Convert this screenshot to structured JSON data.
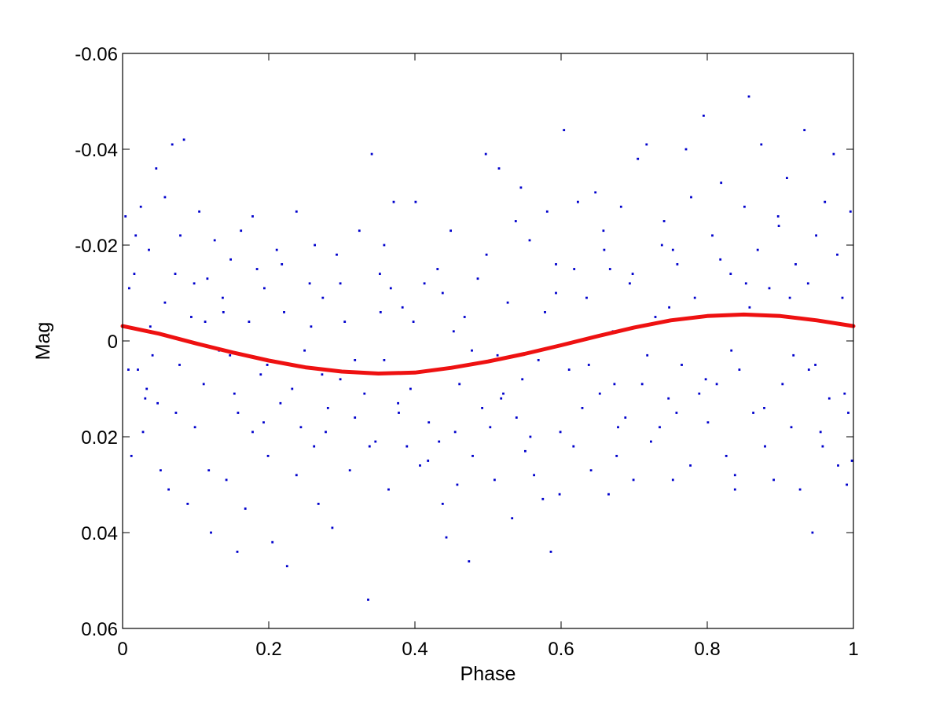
{
  "chart_data": {
    "type": "scatter",
    "title": "",
    "xlabel": "Phase",
    "ylabel": "Mag",
    "xlim": [
      0,
      1
    ],
    "ylim": [
      -0.06,
      0.06
    ],
    "y_axis_reversed": true,
    "grid": false,
    "legend": "none",
    "x_ticks": [
      0,
      0.2,
      0.4,
      0.6,
      0.8,
      1
    ],
    "x_tick_labels": [
      "0",
      "0.2",
      "0.4",
      "0.6",
      "0.8",
      "1"
    ],
    "y_ticks": [
      -0.06,
      -0.04,
      -0.02,
      0,
      0.02,
      0.04,
      0.06
    ],
    "y_tick_labels": [
      "-0.06",
      "-0.04",
      "-0.02",
      "0",
      "0.02",
      "0.04",
      "0.06"
    ],
    "colors": {
      "points": "#0000cc",
      "fit": "#ee1111",
      "axes": "#000000"
    },
    "series": [
      {
        "kind": "points",
        "points": [
          [
            0.004,
            -0.026
          ],
          [
            0.009,
            -0.011
          ],
          [
            0.012,
            0.024
          ],
          [
            0.016,
            -0.014
          ],
          [
            0.021,
            0.006
          ],
          [
            0.025,
            -0.028
          ],
          [
            0.031,
            0.012
          ],
          [
            0.036,
            -0.019
          ],
          [
            0.041,
            0.003
          ],
          [
            0.046,
            -0.036
          ],
          [
            0.052,
            0.027
          ],
          [
            0.058,
            -0.008
          ],
          [
            0.063,
            0.031
          ],
          [
            0.068,
            -0.041
          ],
          [
            0.073,
            0.015
          ],
          [
            0.079,
            -0.022
          ],
          [
            0.084,
            -0.042
          ],
          [
            0.089,
            0.034
          ],
          [
            0.094,
            -0.005
          ],
          [
            0.099,
            0.018
          ],
          [
            0.105,
            -0.027
          ],
          [
            0.111,
            0.009
          ],
          [
            0.116,
            -0.013
          ],
          [
            0.121,
            0.04
          ],
          [
            0.126,
            -0.021
          ],
          [
            0.132,
            0.002
          ],
          [
            0.137,
            -0.009
          ],
          [
            0.142,
            0.029
          ],
          [
            0.148,
            -0.017
          ],
          [
            0.153,
            0.011
          ],
          [
            0.157,
            0.044
          ],
          [
            0.162,
            -0.023
          ],
          [
            0.168,
            0.035
          ],
          [
            0.173,
            -0.004
          ],
          [
            0.178,
            0.019
          ],
          [
            0.184,
            -0.015
          ],
          [
            0.189,
            0.007
          ],
          [
            0.194,
            -0.011
          ],
          [
            0.199,
            0.024
          ],
          [
            0.205,
            0.042
          ],
          [
            0.211,
            -0.019
          ],
          [
            0.216,
            0.013
          ],
          [
            0.221,
            -0.006
          ],
          [
            0.225,
            0.047
          ],
          [
            0.232,
            0.01
          ],
          [
            0.238,
            -0.027
          ],
          [
            0.244,
            0.018
          ],
          [
            0.249,
            0.002
          ],
          [
            0.256,
            -0.012
          ],
          [
            0.262,
            0.022
          ],
          [
            0.268,
            0.034
          ],
          [
            0.274,
            -0.009
          ],
          [
            0.281,
            0.014
          ],
          [
            0.287,
            0.039
          ],
          [
            0.293,
            -0.018
          ],
          [
            0.298,
            0.008
          ],
          [
            0.304,
            -0.004
          ],
          [
            0.311,
            0.027
          ],
          [
            0.318,
            0.016
          ],
          [
            0.324,
            -0.023
          ],
          [
            0.331,
            0.011
          ],
          [
            0.336,
            0.054
          ],
          [
            0.341,
            -0.039
          ],
          [
            0.346,
            0.021
          ],
          [
            0.352,
            -0.014
          ],
          [
            0.358,
            0.004
          ],
          [
            0.364,
            0.031
          ],
          [
            0.371,
            -0.029
          ],
          [
            0.377,
            0.013
          ],
          [
            0.383,
            -0.007
          ],
          [
            0.389,
            0.022
          ],
          [
            0.394,
            0.01
          ],
          [
            0.401,
            -0.029
          ],
          [
            0.407,
            0.026
          ],
          [
            0.413,
            -0.012
          ],
          [
            0.419,
            0.017
          ],
          [
            0.425,
            0.006
          ],
          [
            0.431,
            -0.015
          ],
          [
            0.438,
            0.034
          ],
          [
            0.443,
            0.041
          ],
          [
            0.449,
            -0.023
          ],
          [
            0.455,
            0.019
          ],
          [
            0.461,
            0.009
          ],
          [
            0.468,
            -0.005
          ],
          [
            0.474,
            0.046
          ],
          [
            0.479,
            0.024
          ],
          [
            0.486,
            -0.013
          ],
          [
            0.492,
            0.014
          ],
          [
            0.497,
            -0.039
          ],
          [
            0.503,
            0.018
          ],
          [
            0.509,
            0.029
          ],
          [
            0.515,
            -0.036
          ],
          [
            0.521,
            0.011
          ],
          [
            0.527,
            -0.008
          ],
          [
            0.533,
            0.037
          ],
          [
            0.539,
            0.016
          ],
          [
            0.545,
            -0.032
          ],
          [
            0.551,
            0.023
          ],
          [
            0.557,
            -0.021
          ],
          [
            0.563,
            0.028
          ],
          [
            0.569,
            0.004
          ],
          [
            0.575,
            0.033
          ],
          [
            0.581,
            -0.027
          ],
          [
            0.586,
            0.044
          ],
          [
            0.593,
            -0.016
          ],
          [
            0.599,
            0.019
          ],
          [
            0.604,
            -0.044
          ],
          [
            0.611,
            0.006
          ],
          [
            0.617,
            0.022
          ],
          [
            0.623,
            -0.029
          ],
          [
            0.629,
            0.014
          ],
          [
            0.635,
            -0.009
          ],
          [
            0.641,
            0.027
          ],
          [
            0.647,
            -0.031
          ],
          [
            0.653,
            0.011
          ],
          [
            0.659,
            -0.019
          ],
          [
            0.665,
            0.032
          ],
          [
            0.671,
            -0.002
          ],
          [
            0.676,
            0.024
          ],
          [
            0.682,
            -0.028
          ],
          [
            0.688,
            0.016
          ],
          [
            0.694,
            -0.012
          ],
          [
            0.699,
            0.029
          ],
          [
            0.705,
            -0.038
          ],
          [
            0.711,
            0.009
          ],
          [
            0.717,
            -0.041
          ],
          [
            0.723,
            0.021
          ],
          [
            0.729,
            -0.005
          ],
          [
            0.735,
            0.018
          ],
          [
            0.741,
            -0.025
          ],
          [
            0.747,
            0.012
          ],
          [
            0.753,
            0.029
          ],
          [
            0.759,
            -0.016
          ],
          [
            0.765,
            0.005
          ],
          [
            0.771,
            -0.04
          ],
          [
            0.777,
            0.026
          ],
          [
            0.783,
            -0.009
          ],
          [
            0.789,
            0.011
          ],
          [
            0.795,
            -0.047
          ],
          [
            0.801,
            0.017
          ],
          [
            0.807,
            -0.022
          ],
          [
            0.813,
            0.009
          ],
          [
            0.819,
            -0.033
          ],
          [
            0.826,
            0.024
          ],
          [
            0.832,
            -0.014
          ],
          [
            0.838,
            0.031
          ],
          [
            0.844,
            0.006
          ],
          [
            0.851,
            -0.028
          ],
          [
            0.857,
            -0.051
          ],
          [
            0.863,
            0.015
          ],
          [
            0.869,
            -0.019
          ],
          [
            0.874,
            -0.041
          ],
          [
            0.879,
            0.022
          ],
          [
            0.885,
            -0.011
          ],
          [
            0.891,
            0.029
          ],
          [
            0.897,
            -0.026
          ],
          [
            0.903,
            0.009
          ],
          [
            0.909,
            -0.034
          ],
          [
            0.915,
            0.018
          ],
          [
            0.921,
            -0.016
          ],
          [
            0.927,
            0.031
          ],
          [
            0.933,
            -0.044
          ],
          [
            0.939,
            0.006
          ],
          [
            0.944,
            0.04
          ],
          [
            0.949,
            -0.022
          ],
          [
            0.955,
            0.019
          ],
          [
            0.961,
            -0.029
          ],
          [
            0.967,
            0.012
          ],
          [
            0.973,
            -0.039
          ],
          [
            0.979,
            0.026
          ],
          [
            0.985,
            -0.009
          ],
          [
            0.991,
            0.03
          ],
          [
            0.996,
            -0.027
          ],
          [
            0.998,
            0.025
          ],
          [
            0.008,
            0.006
          ],
          [
            0.018,
            -0.022
          ],
          [
            0.028,
            0.019
          ],
          [
            0.038,
            -0.003
          ],
          [
            0.048,
            0.013
          ],
          [
            0.058,
            -0.03
          ],
          [
            0.078,
            0.005
          ],
          [
            0.098,
            -0.012
          ],
          [
            0.118,
            0.027
          ],
          [
            0.138,
            -0.006
          ],
          [
            0.158,
            0.015
          ],
          [
            0.178,
            -0.026
          ],
          [
            0.198,
            0.005
          ],
          [
            0.218,
            -0.016
          ],
          [
            0.238,
            0.028
          ],
          [
            0.258,
            -0.003
          ],
          [
            0.278,
            0.019
          ],
          [
            0.298,
            -0.012
          ],
          [
            0.318,
            0.004
          ],
          [
            0.338,
            0.022
          ],
          [
            0.358,
            -0.02
          ],
          [
            0.378,
            0.015
          ],
          [
            0.398,
            -0.004
          ],
          [
            0.418,
            0.025
          ],
          [
            0.438,
            -0.01
          ],
          [
            0.458,
            0.03
          ],
          [
            0.478,
            0.002
          ],
          [
            0.498,
            -0.018
          ],
          [
            0.518,
            0.012
          ],
          [
            0.538,
            -0.025
          ],
          [
            0.558,
            0.02
          ],
          [
            0.578,
            -0.006
          ],
          [
            0.598,
            0.032
          ],
          [
            0.618,
            -0.015
          ],
          [
            0.638,
            0.005
          ],
          [
            0.658,
            -0.023
          ],
          [
            0.678,
            0.018
          ],
          [
            0.698,
            -0.014
          ],
          [
            0.718,
            0.003
          ],
          [
            0.738,
            -0.02
          ],
          [
            0.758,
            0.015
          ],
          [
            0.778,
            -0.03
          ],
          [
            0.798,
            0.008
          ],
          [
            0.818,
            -0.017
          ],
          [
            0.838,
            0.028
          ],
          [
            0.858,
            -0.007
          ],
          [
            0.878,
            0.014
          ],
          [
            0.898,
            -0.024
          ],
          [
            0.918,
            0.003
          ],
          [
            0.938,
            -0.012
          ],
          [
            0.958,
            0.022
          ],
          [
            0.978,
            -0.018
          ],
          [
            0.988,
            0.011
          ],
          [
            0.072,
            -0.014
          ],
          [
            0.147,
            0.003
          ],
          [
            0.263,
            -0.02
          ],
          [
            0.367,
            -0.011
          ],
          [
            0.453,
            -0.002
          ],
          [
            0.547,
            0.008
          ],
          [
            0.667,
            -0.015
          ],
          [
            0.748,
            -0.007
          ],
          [
            0.853,
            -0.012
          ],
          [
            0.948,
            0.005
          ],
          [
            0.033,
            0.01
          ],
          [
            0.113,
            -0.004
          ],
          [
            0.193,
            0.017
          ],
          [
            0.273,
            0.007
          ],
          [
            0.353,
            -0.006
          ],
          [
            0.433,
            0.021
          ],
          [
            0.513,
            0.003
          ],
          [
            0.593,
            -0.01
          ],
          [
            0.673,
            0.009
          ],
          [
            0.753,
            -0.019
          ],
          [
            0.833,
            0.002
          ],
          [
            0.913,
            -0.009
          ],
          [
            0.993,
            0.015
          ]
        ]
      },
      {
        "kind": "fit",
        "points": [
          [
            0.0,
            -0.0031
          ],
          [
            0.05,
            -0.0015
          ],
          [
            0.1,
            0.0005
          ],
          [
            0.15,
            0.0024
          ],
          [
            0.2,
            0.0041
          ],
          [
            0.25,
            0.0055
          ],
          [
            0.3,
            0.0064
          ],
          [
            0.35,
            0.0068
          ],
          [
            0.4,
            0.0066
          ],
          [
            0.45,
            0.0056
          ],
          [
            0.5,
            0.0043
          ],
          [
            0.55,
            0.0027
          ],
          [
            0.6,
            0.0009
          ],
          [
            0.65,
            -0.001
          ],
          [
            0.7,
            -0.0028
          ],
          [
            0.75,
            -0.0043
          ],
          [
            0.8,
            -0.0052
          ],
          [
            0.85,
            -0.0055
          ],
          [
            0.9,
            -0.0052
          ],
          [
            0.95,
            -0.0043
          ],
          [
            1.0,
            -0.0031
          ]
        ]
      }
    ]
  }
}
